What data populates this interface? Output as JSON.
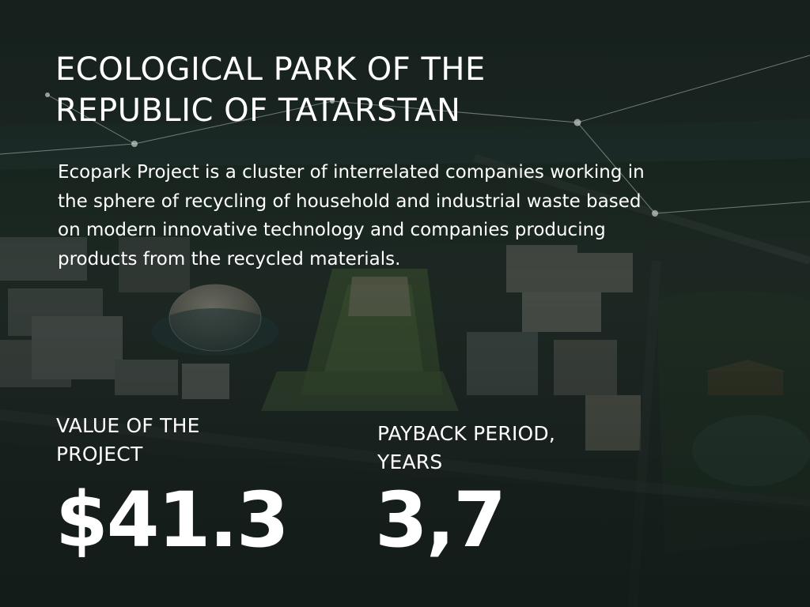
{
  "slide": {
    "title_lines": [
      "ECOLOGICAL PARK OF THE",
      "REPUBLIC OF TATARSTAN"
    ],
    "description_lines": [
      "Ecopark Project is a cluster of interrelated companies working in",
      "the sphere of recycling of household and industrial waste based",
      "on modern innovative technology and companies producing",
      "products from the recycled materials."
    ],
    "metrics": [
      {
        "label_lines": [
          "VALUE OF THE",
          "PROJECT"
        ],
        "value": "$41.3"
      },
      {
        "label_lines": [
          "PAYBACK PERIOD,",
          "YEARS"
        ],
        "value": "3,7"
      }
    ]
  },
  "colors": {
    "overlay": "#1b2622",
    "text": "#ffffff",
    "network_line": "#b9c3c0"
  }
}
